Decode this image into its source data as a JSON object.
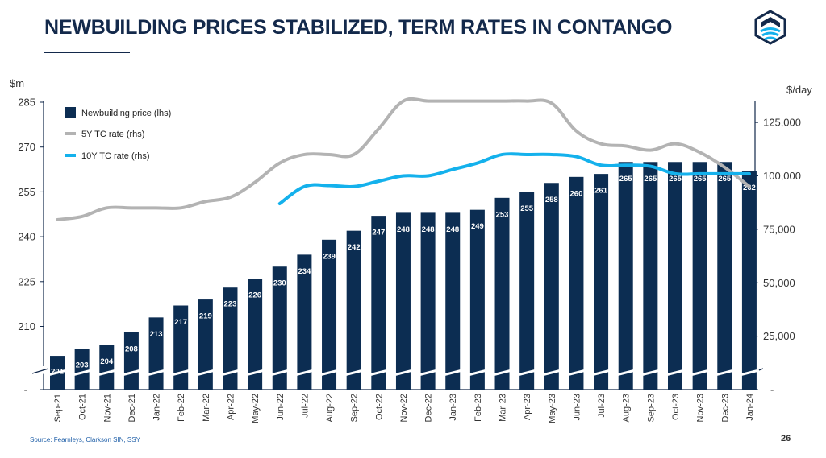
{
  "page": {
    "title": "NEWBUILDING PRICES STABILIZED, TERM RATES IN CONTANGO",
    "source": "Source: Fearnleys, Clarkson SIN, SSY",
    "page_number": "26"
  },
  "colors": {
    "bar": "#0c2d52",
    "five_year": "#b3b3b3",
    "ten_year": "#14b1ec",
    "axis": "#13294b"
  },
  "chart_data": {
    "type": "bar",
    "title": "",
    "left_unit": "$m",
    "right_unit": "$/day",
    "categories": [
      "Sep-21",
      "Oct-21",
      "Nov-21",
      "Dec-21",
      "Jan-22",
      "Feb-22",
      "Mar-22",
      "Apr-22",
      "May-22",
      "Jun-22",
      "Jul-22",
      "Aug-22",
      "Sep-22",
      "Oct-22",
      "Nov-22",
      "Dec-22",
      "Jan-23",
      "Feb-23",
      "Mar-23",
      "Apr-23",
      "May-23",
      "Jun-23",
      "Jul-23",
      "Aug-23",
      "Sep-23",
      "Oct-23",
      "Nov-23",
      "Dec-23",
      "Jan-24"
    ],
    "left_axis": {
      "ticks": [
        "285",
        "270",
        "255",
        "240",
        "225",
        "210",
        "-"
      ],
      "values": [
        285,
        270,
        255,
        240,
        225,
        210
      ]
    },
    "right_axis": {
      "ticks": [
        "125,000",
        "100,000",
        "75,000",
        "50,000",
        "25,000",
        "-"
      ],
      "range": [
        0,
        135000
      ]
    },
    "axis_break": true,
    "series": [
      {
        "name": "Newbuilding price (lhs)",
        "type": "bar",
        "axis": "left",
        "values": [
          201,
          203,
          204,
          208,
          213,
          217,
          219,
          223,
          226,
          230,
          234,
          239,
          242,
          247,
          248,
          248,
          248,
          249,
          253,
          255,
          258,
          260,
          261,
          265,
          265,
          265,
          265,
          265,
          262
        ],
        "labels": [
          "201",
          "203",
          "204",
          "208",
          "213",
          "217",
          "219",
          "223",
          "226",
          "230",
          "234",
          "239",
          "242",
          "247",
          "248",
          "248",
          "248",
          "249",
          "253",
          "255",
          "258",
          "260",
          "261",
          "265",
          "265",
          "265",
          "265",
          "265",
          "262"
        ]
      },
      {
        "name": "5Y TC rate (rhs)",
        "type": "line",
        "axis": "right",
        "values": [
          79500,
          81000,
          85000,
          85000,
          85000,
          85000,
          88000,
          90000,
          97000,
          106000,
          110000,
          110000,
          110000,
          122000,
          135000,
          135000,
          135000,
          135000,
          135000,
          135000,
          134000,
          121000,
          115000,
          114000,
          112000,
          115000,
          111000,
          104000,
          95000
        ]
      },
      {
        "name": "10Y TC rate (rhs)",
        "type": "line",
        "axis": "right",
        "values": [
          null,
          null,
          null,
          null,
          null,
          null,
          null,
          null,
          null,
          87000,
          95000,
          95500,
          95000,
          97500,
          100000,
          100000,
          103000,
          106000,
          110000,
          110000,
          110000,
          109000,
          105000,
          105000,
          104500,
          101000,
          101000,
          101000,
          101000
        ]
      }
    ],
    "legend": {
      "position": "top-left"
    },
    "grid": false
  }
}
